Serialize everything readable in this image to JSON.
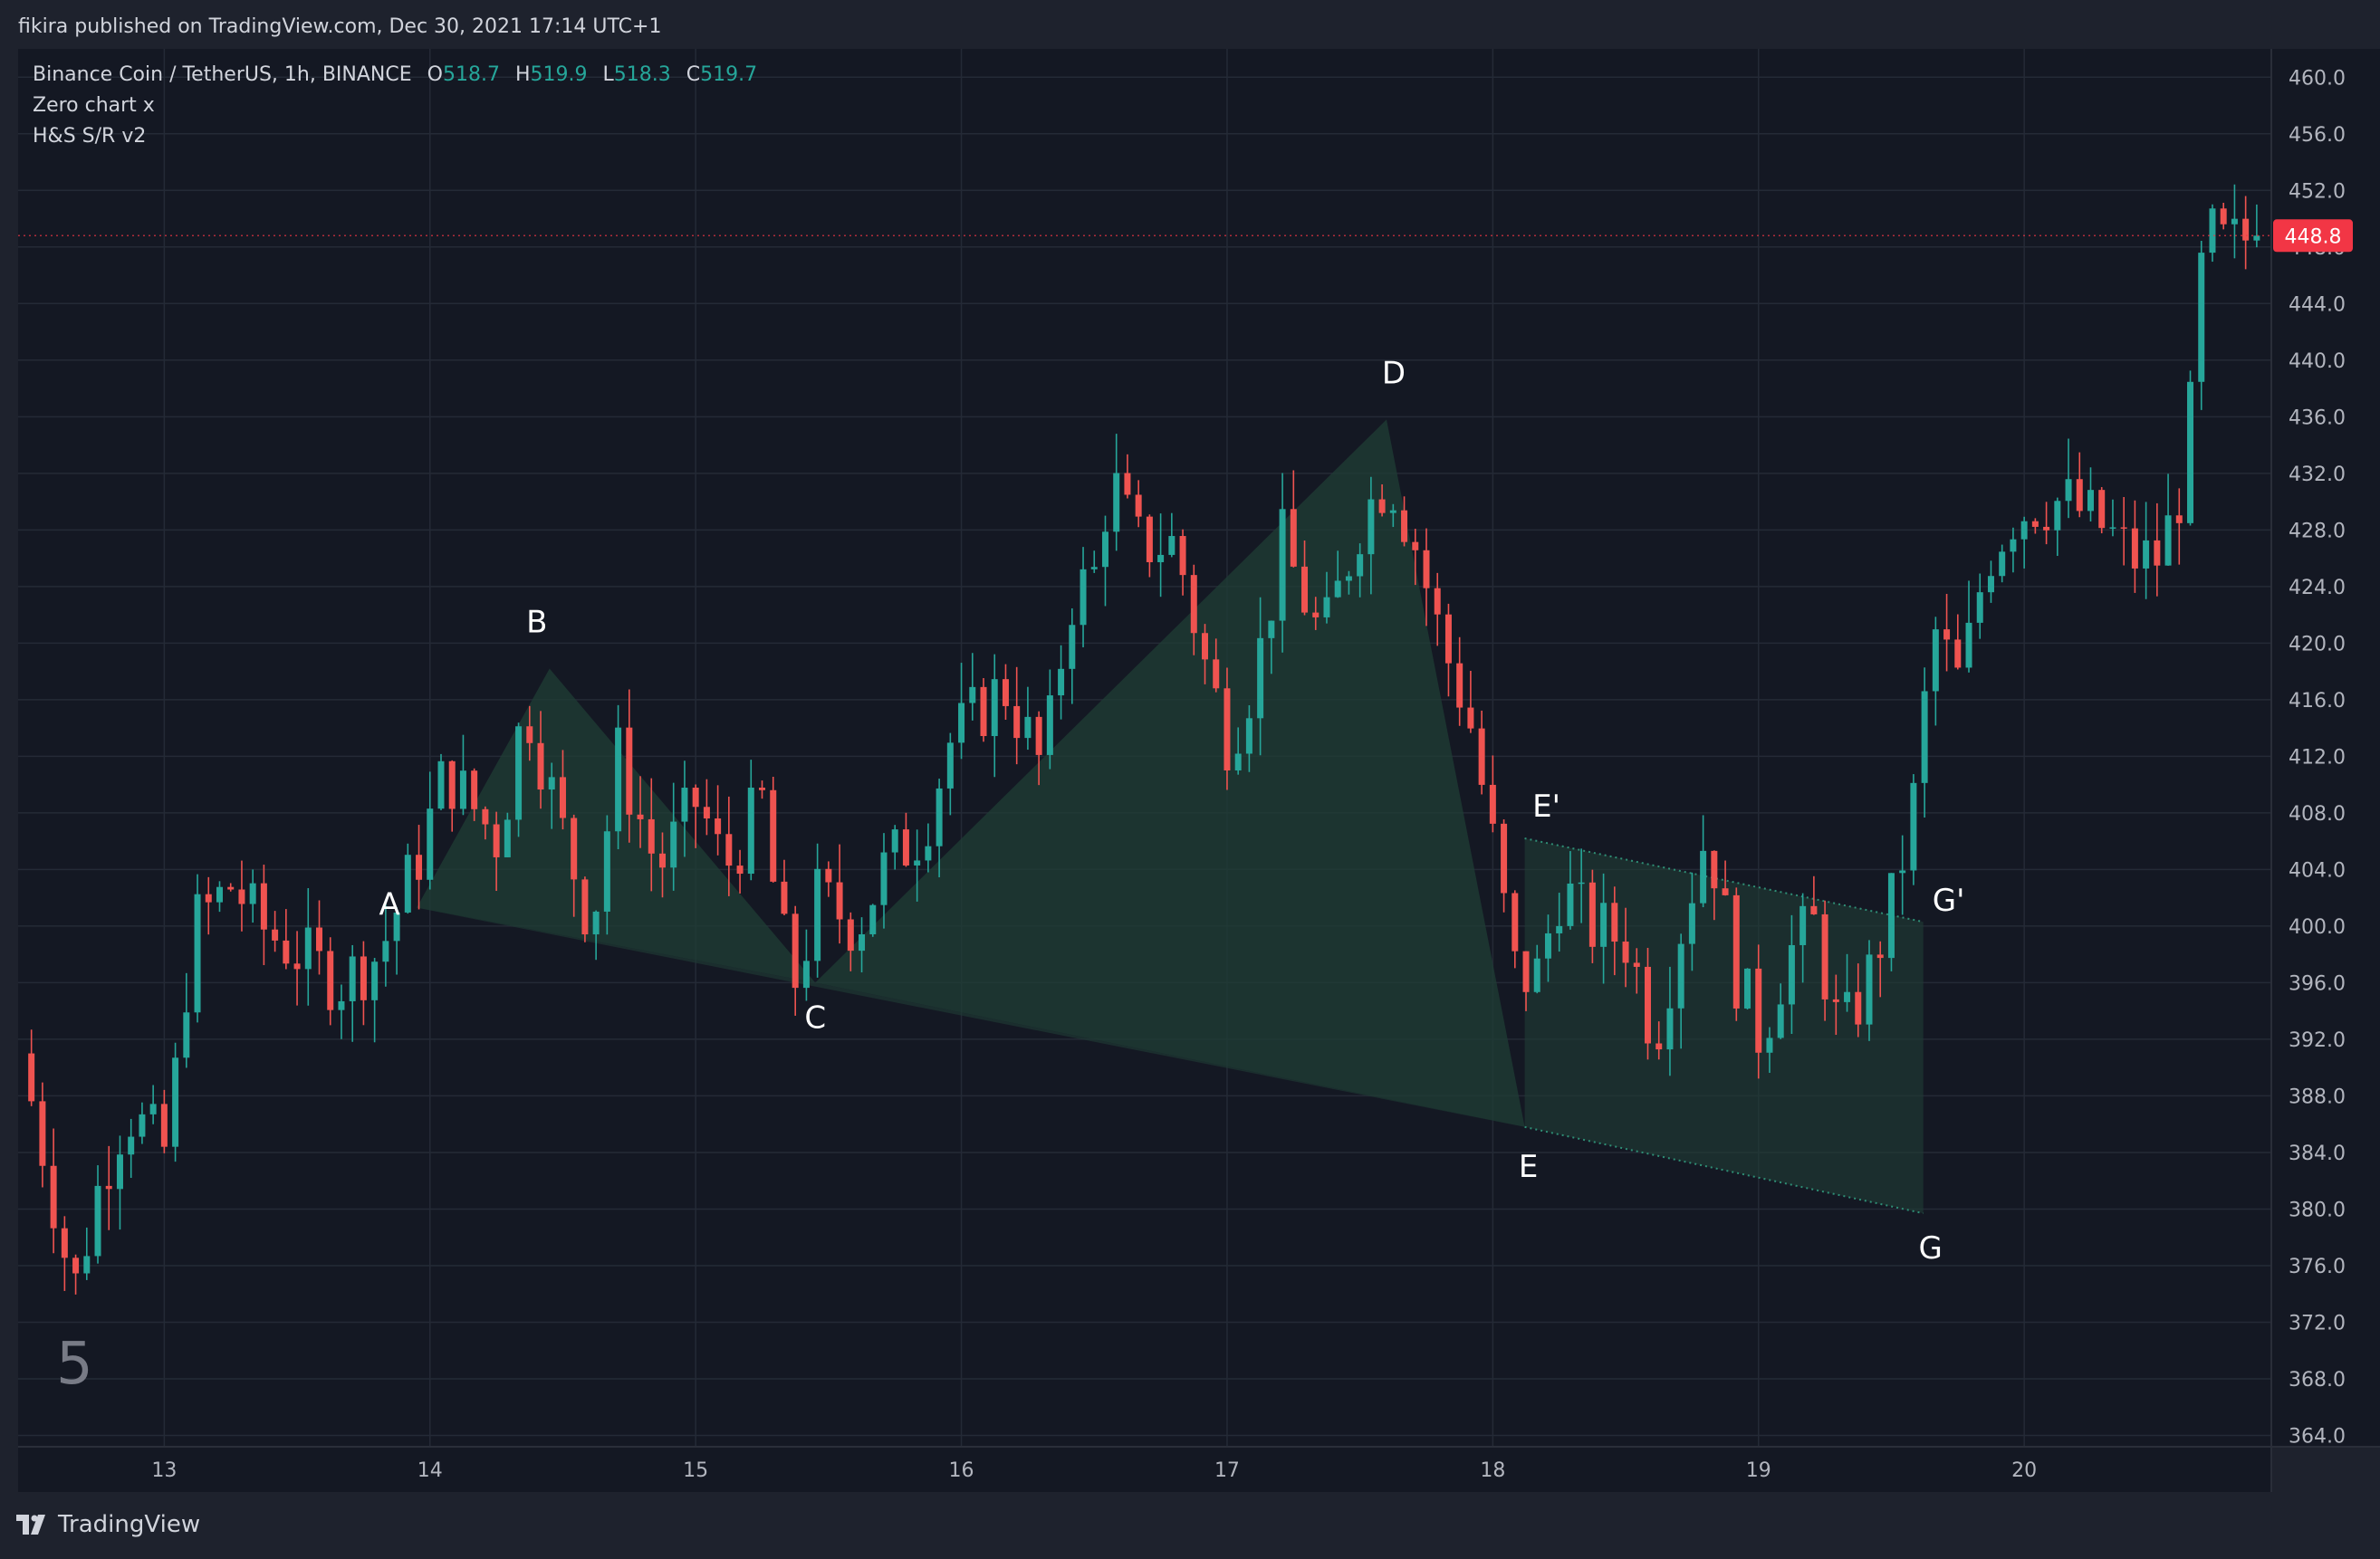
{
  "header": {
    "published": "fikira published on TradingView.com, Dec 30, 2021 17:14 UTC+1"
  },
  "legend": {
    "symbol": "Binance Coin / TetherUS, 1h, BINANCE",
    "open_label": "O",
    "open": "518.7",
    "high_label": "H",
    "high": "519.9",
    "low_label": "L",
    "low": "518.3",
    "close_label": "C",
    "close": "519.7",
    "indicators": [
      "Zero chart x",
      "H&S S/R v2"
    ]
  },
  "footer": {
    "brand": "TradingView"
  },
  "watermark": "5",
  "colors": {
    "up": "#26a69a",
    "down": "#ef5350",
    "background": "#141823",
    "pattern_fill": "#1f3d35",
    "price_tag": "#f23645"
  },
  "chart_data": {
    "type": "candlestick",
    "xlabel": "",
    "ylabel": "",
    "x_ticks": [
      "13",
      "14",
      "15",
      "16",
      "17",
      "18",
      "19",
      "20"
    ],
    "x_tick_pos": [
      13,
      14,
      15,
      16,
      17,
      18,
      19,
      20
    ],
    "x_range": [
      12.45,
      20.93
    ],
    "y_ticks": [
      364,
      368,
      372,
      376,
      380,
      384,
      388,
      392,
      396,
      400,
      404,
      408,
      412,
      416,
      420,
      424,
      428,
      432,
      436,
      440,
      444,
      448,
      452,
      456,
      460
    ],
    "y_tick_labels": [
      "364.0",
      "368.0",
      "372.0",
      "376.0",
      "380.0",
      "384.0",
      "388.0",
      "392.0",
      "396.0",
      "400.0",
      "404.0",
      "408.0",
      "412.0",
      "416.0",
      "420.0",
      "424.0",
      "428.0",
      "432.0",
      "436.0",
      "440.0",
      "444.0",
      "448.0",
      "452.0",
      "456.0",
      "460.0"
    ],
    "ylim": [
      363.2,
      462.0
    ],
    "grid": true,
    "last_price": "448.8",
    "last_price_value": 448.8,
    "key_prices": [
      [
        12.5,
        391
      ],
      [
        12.6,
        383
      ],
      [
        12.7,
        374
      ],
      [
        12.8,
        382
      ],
      [
        12.9,
        387
      ],
      [
        13.05,
        384
      ],
      [
        13.15,
        400
      ],
      [
        13.3,
        403
      ],
      [
        13.4,
        400
      ],
      [
        13.55,
        398
      ],
      [
        13.7,
        396
      ],
      [
        13.85,
        398
      ],
      [
        14.0,
        405
      ],
      [
        14.1,
        411
      ],
      [
        14.3,
        406
      ],
      [
        14.4,
        416
      ],
      [
        14.55,
        406
      ],
      [
        14.65,
        400
      ],
      [
        14.75,
        412
      ],
      [
        14.9,
        404
      ],
      [
        15.05,
        409
      ],
      [
        15.15,
        404
      ],
      [
        15.3,
        409
      ],
      [
        15.35,
        400
      ],
      [
        15.42,
        396
      ],
      [
        15.5,
        402
      ],
      [
        15.65,
        400
      ],
      [
        15.75,
        404
      ],
      [
        15.9,
        407
      ],
      [
        16.0,
        413
      ],
      [
        16.1,
        415
      ],
      [
        16.2,
        417
      ],
      [
        16.35,
        411
      ],
      [
        16.45,
        423
      ],
      [
        16.55,
        425
      ],
      [
        16.6,
        432
      ],
      [
        16.7,
        427
      ],
      [
        16.85,
        427
      ],
      [
        16.95,
        419
      ],
      [
        17.05,
        413
      ],
      [
        17.15,
        418
      ],
      [
        17.25,
        427
      ],
      [
        17.4,
        420
      ],
      [
        17.55,
        429
      ],
      [
        17.65,
        432
      ],
      [
        17.75,
        427
      ],
      [
        17.85,
        420
      ],
      [
        17.95,
        415
      ],
      [
        18.05,
        405
      ],
      [
        18.12,
        397
      ],
      [
        18.2,
        396
      ],
      [
        18.3,
        403
      ],
      [
        18.4,
        400
      ],
      [
        18.55,
        399
      ],
      [
        18.65,
        392
      ],
      [
        18.75,
        400
      ],
      [
        18.85,
        407
      ],
      [
        18.95,
        397
      ],
      [
        19.05,
        392
      ],
      [
        19.15,
        398
      ],
      [
        19.25,
        400
      ],
      [
        19.35,
        392
      ],
      [
        19.45,
        396
      ],
      [
        19.55,
        402
      ],
      [
        19.62,
        408
      ],
      [
        19.7,
        421
      ],
      [
        19.8,
        417
      ],
      [
        19.9,
        426
      ],
      [
        20.0,
        429
      ],
      [
        20.1,
        430
      ],
      [
        20.2,
        430
      ],
      [
        20.35,
        428
      ],
      [
        20.45,
        426
      ],
      [
        20.55,
        426
      ],
      [
        20.6,
        429
      ],
      [
        20.65,
        432
      ],
      [
        20.72,
        449
      ],
      [
        20.8,
        448
      ],
      [
        20.9,
        448.8
      ]
    ],
    "pattern": {
      "points": [
        {
          "label": "A",
          "x": 13.95,
          "y": 401.3
        },
        {
          "label": "B",
          "x": 14.45,
          "y": 418.2
        },
        {
          "label": "C",
          "x": 15.45,
          "y": 396.0
        },
        {
          "label": "D",
          "x": 17.6,
          "y": 435.8
        },
        {
          "label": "E",
          "x": 18.12,
          "y": 385.8
        },
        {
          "label": "E'",
          "x": 18.12,
          "y": 406.2
        },
        {
          "label": "G",
          "x": 19.62,
          "y": 379.7
        },
        {
          "label": "G'",
          "x": 19.62,
          "y": 400.3
        }
      ]
    }
  }
}
